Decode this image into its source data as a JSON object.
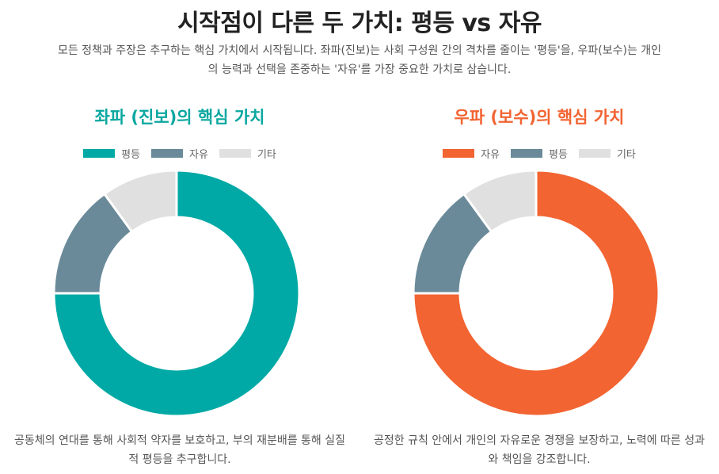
{
  "header": {
    "title": "시작점이 다른 두 가치: 평등 vs 자유",
    "subtitle": "모든 정책과 주장은 추구하는 핵심 가치에서 시작됩니다. 좌파(진보)는 사회 구성원 간의 격차를 줄이는 '평등'을, 우파(보수)는 개인의 능력과 선택을 존중하는 '자유'를 가장 중요한 가치로 삼습니다."
  },
  "chart_data": [
    {
      "type": "pie",
      "title": "좌파 (진보)의 핵심 가치",
      "title_color": "#0aa7a0",
      "legend_position": "top",
      "donut": true,
      "slices": [
        {
          "label": "평등",
          "value": 75,
          "color": "#00a9a5"
        },
        {
          "label": "자유",
          "value": 15,
          "color": "#6a8a99"
        },
        {
          "label": "기타",
          "value": 10,
          "color": "#e0e0e0"
        }
      ],
      "caption": "공동체의 연대를 통해 사회적 약자를 보호하고, 부의 재분배를 통해 실질적 평등을 추구합니다."
    },
    {
      "type": "pie",
      "title": "우파 (보수)의 핵심 가치",
      "title_color": "#f26432",
      "legend_position": "top",
      "donut": true,
      "slices": [
        {
          "label": "자유",
          "value": 75,
          "color": "#f26432"
        },
        {
          "label": "평등",
          "value": 15,
          "color": "#6a8a99"
        },
        {
          "label": "기타",
          "value": 10,
          "color": "#e0e0e0"
        }
      ],
      "caption": "공정한 규칙 안에서 개인의 자유로운 경쟁을 보장하고, 노력에 따른 성과와 책임을 강조합니다."
    }
  ]
}
